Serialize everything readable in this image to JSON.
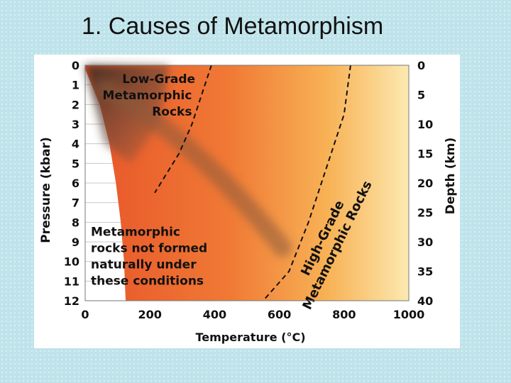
{
  "slide": {
    "title": "1. Causes of Metamorphism"
  },
  "chart_data": {
    "type": "area",
    "xlabel": "Temperature (°C)",
    "ylabel": "Pressure (kbar)",
    "y2label": "Depth (km)",
    "xlim": [
      0,
      1000
    ],
    "ylim": [
      0,
      12
    ],
    "y2lim": [
      0,
      40
    ],
    "x_ticks": [
      "0",
      "200",
      "400",
      "600",
      "800",
      "1000"
    ],
    "y_ticks": [
      "0",
      "1",
      "2",
      "3",
      "4",
      "5",
      "6",
      "7",
      "8",
      "9",
      "10",
      "11",
      "12"
    ],
    "y2_ticks": [
      "0",
      "5",
      "10",
      "15",
      "20",
      "25",
      "30",
      "35",
      "40"
    ],
    "grid": true,
    "regions": [
      {
        "label": "Low-Grade Metamorphic Rocks",
        "lines": [
          "Low-Grade",
          "Metamorphic",
          "Rocks"
        ]
      },
      {
        "label": "High-Grade Metamorphic Rocks",
        "lines": [
          "High-Grade",
          "Metamorphic Rocks"
        ]
      },
      {
        "label": "Metamorphic rocks not formed naturally under these conditions",
        "lines": [
          "Metamorphic",
          "rocks not formed",
          "naturally under",
          "these conditions"
        ]
      }
    ],
    "boundaries": [
      {
        "name": "low-grade-boundary",
        "points": [
          [
            390,
            0
          ],
          [
            360,
            1.5
          ],
          [
            330,
            3
          ],
          [
            290,
            4.5
          ],
          [
            215,
            6.5
          ]
        ]
      },
      {
        "name": "high-grade-boundary",
        "points": [
          [
            820,
            0
          ],
          [
            800,
            2.5
          ],
          [
            770,
            4
          ],
          [
            730,
            6
          ],
          [
            690,
            8
          ],
          [
            630,
            10.5
          ],
          [
            550,
            12
          ]
        ]
      },
      {
        "name": "unnatural-conditions-boundary",
        "points": [
          [
            0,
            0.2
          ],
          [
            45,
            2
          ],
          [
            75,
            4
          ],
          [
            95,
            6
          ],
          [
            110,
            8
          ],
          [
            120,
            10
          ],
          [
            125,
            12
          ]
        ]
      }
    ],
    "colors": {
      "cool": "#f26a2e",
      "mid": "#f7a34a",
      "hot": "#fbe8a8",
      "geotherm_band": "#8a5a3c",
      "grid": "#c9c9c9",
      "boundary": "#111111"
    }
  }
}
